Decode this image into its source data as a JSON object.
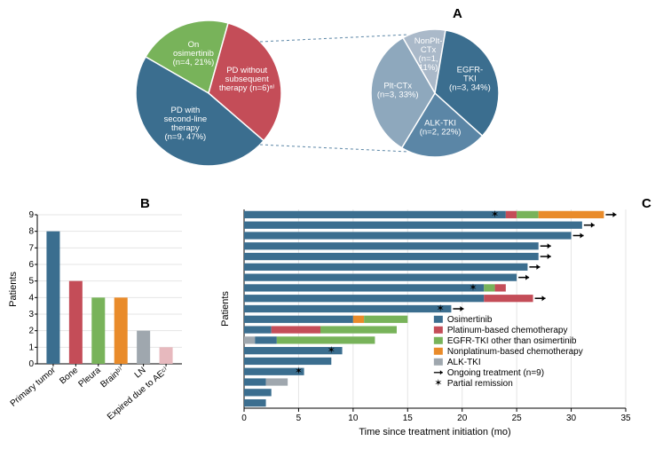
{
  "panelA": {
    "label": "A",
    "pie_left": {
      "slices": [
        {
          "label_lines": [
            "On",
            "osimertinib",
            "(n=4, 21%)"
          ],
          "value": 21,
          "color": "#78b35a"
        },
        {
          "label_lines": [
            "PD without",
            "subsequent",
            "therapy (n=6)ᵃ⁾"
          ],
          "value": 32,
          "color": "#c44d58"
        },
        {
          "label_lines": [
            "PD with",
            "second-line",
            "therapy",
            "(n=9, 47%)"
          ],
          "value": 47,
          "color": "#3b6e8f"
        }
      ]
    },
    "pie_right": {
      "slices": [
        {
          "label_lines": [
            "NonPlt-",
            "CTx",
            "(n=1,",
            "11%)"
          ],
          "value": 11,
          "color": "#aab9c9"
        },
        {
          "label_lines": [
            "EGFR-",
            "TKI",
            "(n=3, 34%)"
          ],
          "value": 34,
          "color": "#3b6e8f"
        },
        {
          "label_lines": [
            "ALK-TKI",
            "(n=2, 22%)"
          ],
          "value": 22,
          "color": "#5b86a6"
        },
        {
          "label_lines": [
            "Plt-CTx",
            "(n=3, 33%)"
          ],
          "value": 33,
          "color": "#8ea8bd"
        }
      ]
    }
  },
  "panelB": {
    "label": "B",
    "y_title": "Patients",
    "y_ticks": [
      0,
      1,
      2,
      3,
      4,
      5,
      6,
      7,
      8,
      9
    ],
    "bars": [
      {
        "label": "Primary tumor",
        "value": 8,
        "color": "#3b6e8f"
      },
      {
        "label": "Bone",
        "value": 5,
        "color": "#c44d58"
      },
      {
        "label": "Pleura",
        "value": 4,
        "color": "#78b35a"
      },
      {
        "label": "Brainᵇ⁾",
        "value": 4,
        "color": "#e98b2a"
      },
      {
        "label": "LN",
        "value": 2,
        "color": "#9fa7ae"
      },
      {
        "label": "Expired due to AEᶜ⁾",
        "value": 1,
        "color": "#e7b9be"
      }
    ]
  },
  "panelC": {
    "label": "C",
    "x_title": "Time since treatment initiation (mo)",
    "y_title": "Patients",
    "x_ticks": [
      0,
      5,
      10,
      15,
      20,
      25,
      30,
      35
    ],
    "legend": [
      {
        "label": "Osimertinib",
        "color": "#3b6e8f",
        "type": "rect"
      },
      {
        "label": "Platinum-based chemotherapy",
        "color": "#c44d58",
        "type": "rect"
      },
      {
        "label": "EGFR-TKI other than osimertinib",
        "color": "#78b35a",
        "type": "rect"
      },
      {
        "label": "Nonplatinum-based chemotherapy",
        "color": "#e98b2a",
        "type": "rect"
      },
      {
        "label": "ALK-TKI",
        "color": "#9fa7ae",
        "type": "rect"
      },
      {
        "label": "Ongoing treatment (n=9)",
        "type": "arrow"
      },
      {
        "label": "Partial remission",
        "type": "star"
      }
    ],
    "rows": [
      {
        "segments": [
          {
            "start": 0,
            "end": 24,
            "color": "#3b6e8f"
          },
          {
            "start": 24,
            "end": 25,
            "color": "#c44d58"
          },
          {
            "start": 25,
            "end": 27,
            "color": "#78b35a"
          },
          {
            "start": 27,
            "end": 33,
            "color": "#e98b2a"
          }
        ],
        "arrow": true,
        "star_at": 23
      },
      {
        "segments": [
          {
            "start": 0,
            "end": 31,
            "color": "#3b6e8f"
          }
        ],
        "arrow": true
      },
      {
        "segments": [
          {
            "start": 0,
            "end": 30,
            "color": "#3b6e8f"
          }
        ],
        "arrow": true
      },
      {
        "segments": [
          {
            "start": 0,
            "end": 27,
            "color": "#3b6e8f"
          }
        ],
        "arrow": true
      },
      {
        "segments": [
          {
            "start": 0,
            "end": 27,
            "color": "#3b6e8f"
          }
        ],
        "arrow": true
      },
      {
        "segments": [
          {
            "start": 0,
            "end": 26,
            "color": "#3b6e8f"
          }
        ],
        "arrow": true
      },
      {
        "segments": [
          {
            "start": 0,
            "end": 25,
            "color": "#3b6e8f"
          }
        ],
        "arrow": true
      },
      {
        "segments": [
          {
            "start": 0,
            "end": 22,
            "color": "#3b6e8f"
          },
          {
            "start": 22,
            "end": 23,
            "color": "#78b35a"
          },
          {
            "start": 23,
            "end": 24,
            "color": "#c44d58"
          }
        ],
        "star_at": 21
      },
      {
        "segments": [
          {
            "start": 0,
            "end": 22,
            "color": "#3b6e8f"
          },
          {
            "start": 22,
            "end": 26.5,
            "color": "#c44d58"
          }
        ],
        "arrow": true
      },
      {
        "segments": [
          {
            "start": 0,
            "end": 19,
            "color": "#3b6e8f"
          }
        ],
        "arrow": true,
        "star_at": 18
      },
      {
        "segments": [
          {
            "start": 0,
            "end": 10,
            "color": "#3b6e8f"
          },
          {
            "start": 10,
            "end": 11,
            "color": "#e98b2a"
          },
          {
            "start": 11,
            "end": 15,
            "color": "#78b35a"
          }
        ]
      },
      {
        "segments": [
          {
            "start": 0,
            "end": 2.5,
            "color": "#3b6e8f"
          },
          {
            "start": 2.5,
            "end": 7,
            "color": "#c44d58"
          },
          {
            "start": 7,
            "end": 14,
            "color": "#78b35a"
          }
        ]
      },
      {
        "segments": [
          {
            "start": 0,
            "end": 1,
            "color": "#9fa7ae"
          },
          {
            "start": 1,
            "end": 3,
            "color": "#3b6e8f"
          },
          {
            "start": 3,
            "end": 12,
            "color": "#78b35a"
          }
        ]
      },
      {
        "segments": [
          {
            "start": 0,
            "end": 9,
            "color": "#3b6e8f"
          }
        ],
        "star_at": 8
      },
      {
        "segments": [
          {
            "start": 0,
            "end": 8,
            "color": "#3b6e8f"
          }
        ]
      },
      {
        "segments": [
          {
            "start": 0,
            "end": 5.5,
            "color": "#3b6e8f"
          }
        ],
        "star_at": 5
      },
      {
        "segments": [
          {
            "start": 0,
            "end": 2,
            "color": "#3b6e8f"
          },
          {
            "start": 2,
            "end": 4,
            "color": "#9fa7ae"
          }
        ]
      },
      {
        "segments": [
          {
            "start": 0,
            "end": 2.5,
            "color": "#3b6e8f"
          }
        ]
      },
      {
        "segments": [
          {
            "start": 0,
            "end": 2,
            "color": "#3b6e8f"
          }
        ]
      }
    ]
  },
  "style": {
    "grid_color": "#e5e5e5",
    "axis_color": "#000000",
    "dashed_line_color": "#5b86a6"
  }
}
